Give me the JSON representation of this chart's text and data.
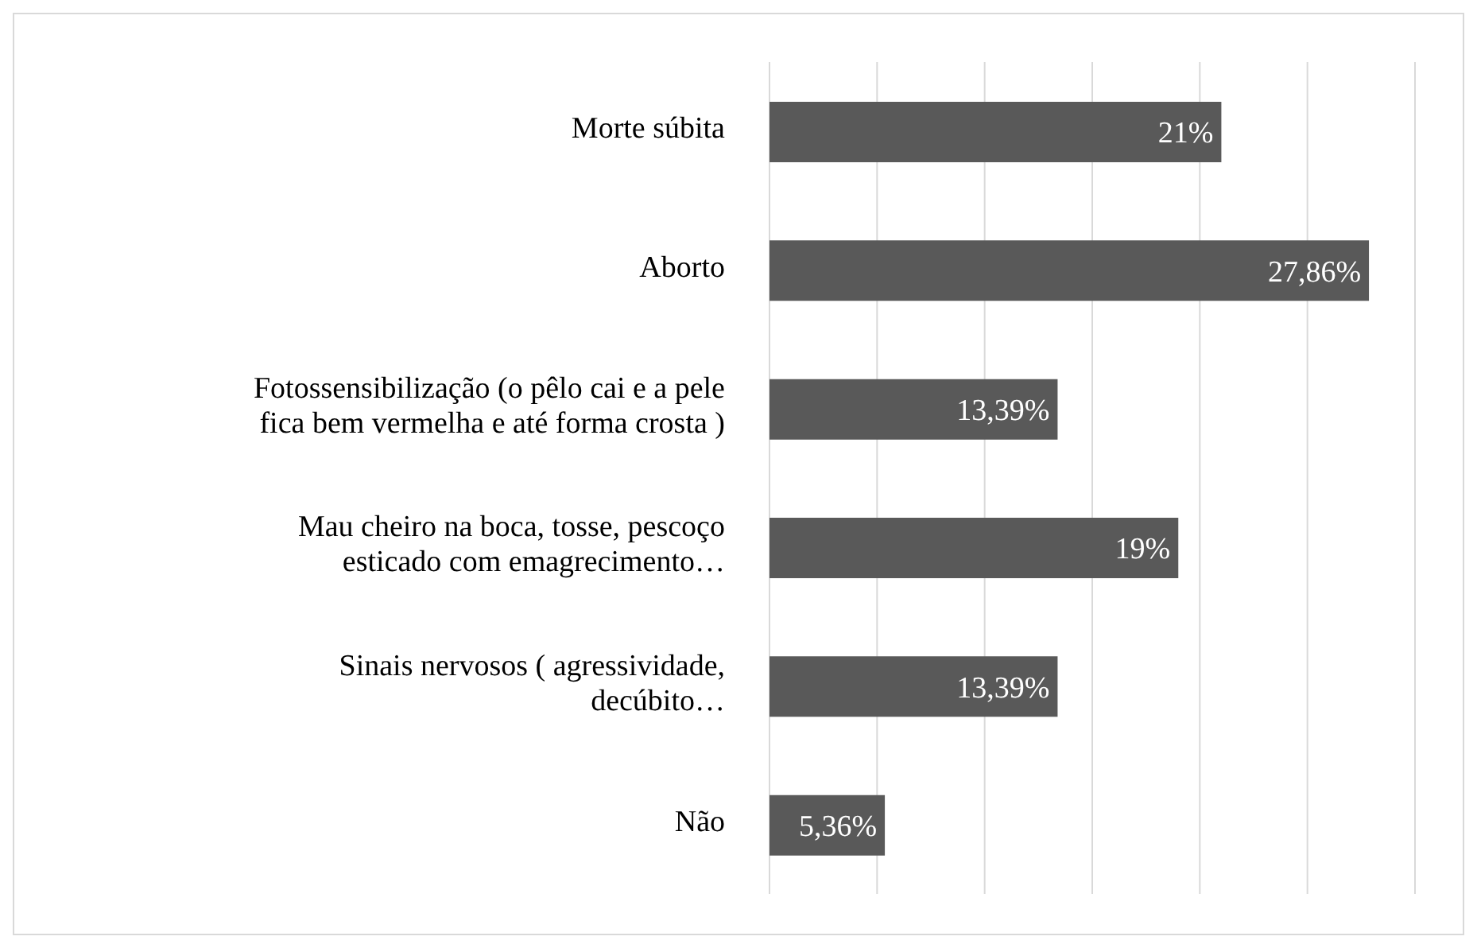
{
  "chart_data": {
    "type": "bar",
    "orientation": "horizontal",
    "categories": [
      "Morte súbita",
      "Aborto",
      "Fotossensibilização (o pêlo cai e a pele fica bem vermelha e até forma crosta )",
      "Mau cheiro na boca, tosse, pescoço esticado com emagrecimento…",
      "Sinais nervosos ( agressividade, decúbito…",
      "Não"
    ],
    "values": [
      21,
      27.86,
      13.39,
      19,
      13.39,
      5.36
    ],
    "value_labels": [
      "21%",
      "27,86%",
      "13,39%",
      "19%",
      "13,39%",
      "5,36%"
    ],
    "color": "#595959",
    "grid": "x",
    "tick_labels": "y"
  }
}
